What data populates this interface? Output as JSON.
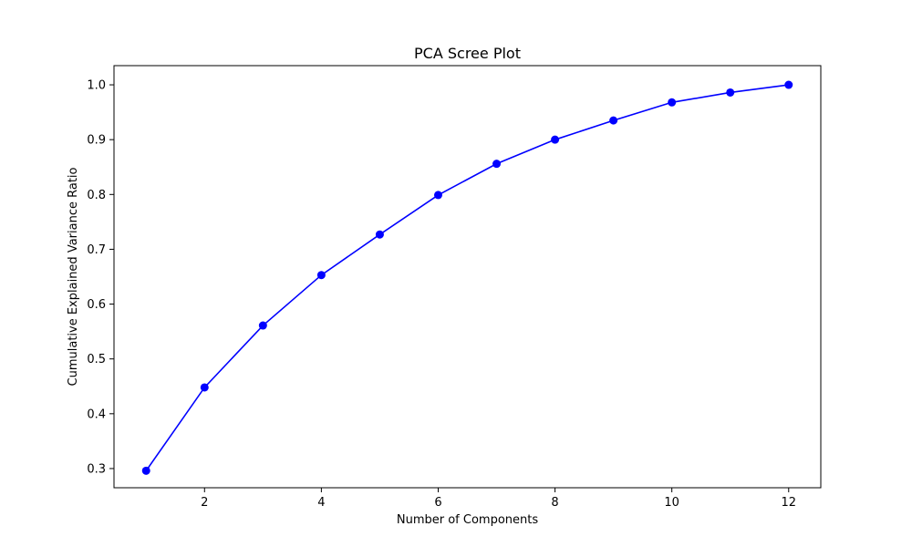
{
  "chart_data": {
    "type": "line",
    "title": "PCA Scree Plot",
    "xlabel": "Number of Components",
    "ylabel": "Cumulative Explained Variance Ratio",
    "xlim": [
      0.45,
      12.55
    ],
    "ylim": [
      0.265,
      1.035
    ],
    "xticks": [
      2,
      4,
      6,
      8,
      10,
      12
    ],
    "yticks": [
      0.3,
      0.4,
      0.5,
      0.6,
      0.7,
      0.8,
      0.9,
      1.0
    ],
    "xtick_labels": [
      "2",
      "4",
      "6",
      "8",
      "10",
      "12"
    ],
    "ytick_labels": [
      "0.3",
      "0.4",
      "0.5",
      "0.6",
      "0.7",
      "0.8",
      "0.9",
      "1.0"
    ],
    "grid": false,
    "series": [
      {
        "x": [
          1,
          2,
          3,
          4,
          5,
          6,
          7,
          8,
          9,
          10,
          11,
          12
        ],
        "values": [
          0.296,
          0.448,
          0.561,
          0.653,
          0.727,
          0.799,
          0.856,
          0.9,
          0.935,
          0.968,
          0.986,
          1.0
        ],
        "color": "#0000ff",
        "marker": "circle"
      }
    ]
  }
}
